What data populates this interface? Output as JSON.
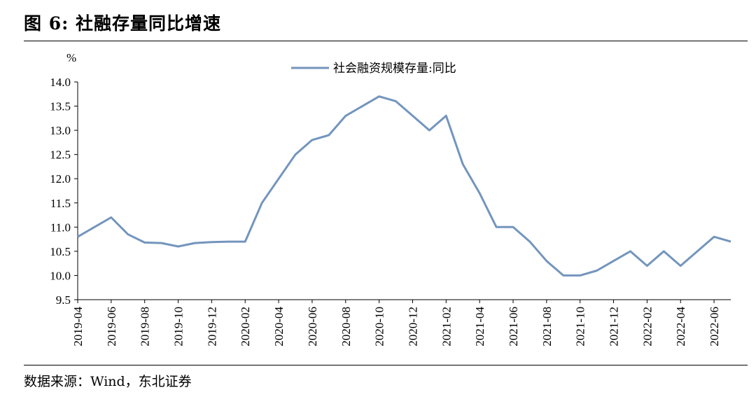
{
  "figure": {
    "title": "图 6: 社融存量同比增速",
    "source": "数据来源：Wind，东北证券"
  },
  "colors": {
    "series": "#7395bd",
    "axis": "#000000"
  },
  "chart_data": {
    "type": "line",
    "title": "",
    "xlabel": "",
    "ylabel": "%",
    "ylim": [
      9.5,
      14.0
    ],
    "y_ticks": [
      9.5,
      10.0,
      10.5,
      11.0,
      11.5,
      12.0,
      12.5,
      13.0,
      13.5,
      14.0
    ],
    "y_tick_labels": [
      "9.5",
      "10.0",
      "10.5",
      "11.0",
      "11.5",
      "12.0",
      "12.5",
      "13.0",
      "13.5",
      "14.0"
    ],
    "x_tick_labels": [
      "2019-04",
      "2019-06",
      "2019-08",
      "2019-10",
      "2019-12",
      "2020-02",
      "2020-04",
      "2020-06",
      "2020-08",
      "2020-10",
      "2020-12",
      "2021-02",
      "2021-04",
      "2021-06",
      "2021-08",
      "2021-10",
      "2021-12",
      "2022-02",
      "2022-04",
      "2022-06"
    ],
    "grid": false,
    "legend_position": "top-center",
    "series": [
      {
        "name": "社会融资规模存量:同比",
        "x": [
          "2019-04",
          "2019-05",
          "2019-06",
          "2019-07",
          "2019-08",
          "2019-09",
          "2019-10",
          "2019-11",
          "2019-12",
          "2020-01",
          "2020-02",
          "2020-03",
          "2020-04",
          "2020-05",
          "2020-06",
          "2020-07",
          "2020-08",
          "2020-09",
          "2020-10",
          "2020-11",
          "2020-12",
          "2021-01",
          "2021-02",
          "2021-03",
          "2021-04",
          "2021-05",
          "2021-06",
          "2021-07",
          "2021-08",
          "2021-09",
          "2021-10",
          "2021-11",
          "2021-12",
          "2022-01",
          "2022-02",
          "2022-03",
          "2022-04",
          "2022-05",
          "2022-06",
          "2022-07"
        ],
        "values": [
          10.8,
          11.0,
          11.2,
          10.85,
          10.68,
          10.67,
          10.6,
          10.67,
          10.69,
          10.7,
          10.7,
          11.5,
          12.0,
          12.5,
          12.8,
          12.9,
          13.3,
          13.5,
          13.7,
          13.6,
          13.3,
          13.0,
          13.3,
          12.3,
          11.7,
          11.0,
          11.0,
          10.7,
          10.3,
          10.0,
          10.0,
          10.1,
          10.3,
          10.5,
          10.2,
          10.5,
          10.2,
          10.5,
          10.8,
          10.7
        ]
      }
    ]
  }
}
